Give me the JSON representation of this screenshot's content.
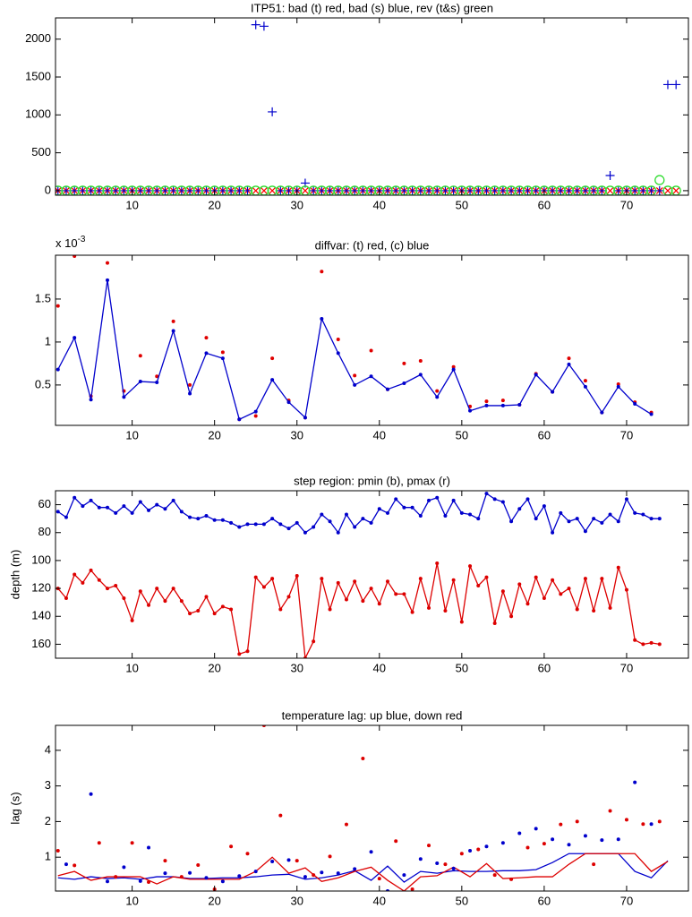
{
  "chart_data": [
    {
      "type": "scatter",
      "title": "ITP51: bad (t) red, bad (s) blue, rev (t&s) green",
      "x": [
        1,
        2,
        3,
        4,
        5,
        6,
        7,
        8,
        9,
        10,
        11,
        12,
        13,
        14,
        15,
        16,
        17,
        18,
        19,
        20,
        21,
        22,
        23,
        24,
        25,
        26,
        27,
        28,
        29,
        30,
        31,
        32,
        33,
        34,
        35,
        36,
        37,
        38,
        39,
        40,
        41,
        42,
        43,
        44,
        45,
        46,
        47,
        48,
        49,
        50,
        51,
        52,
        53,
        54,
        55,
        56,
        57,
        58,
        59,
        60,
        61,
        62,
        63,
        64,
        65,
        66,
        67,
        68,
        69,
        70,
        71,
        72,
        73,
        74,
        75,
        76
      ],
      "series": [
        {
          "color": "#ff0000",
          "marker": "x",
          "line": false,
          "values": [
            0,
            0,
            0,
            0,
            0,
            0,
            0,
            0,
            0,
            0,
            0,
            0,
            0,
            0,
            0,
            0,
            0,
            0,
            0,
            0,
            0,
            0,
            0,
            0,
            0,
            0,
            0,
            0,
            0,
            0,
            0,
            0,
            0,
            0,
            0,
            0,
            0,
            0,
            0,
            0,
            0,
            0,
            0,
            0,
            0,
            0,
            0,
            0,
            0,
            0,
            0,
            0,
            0,
            0,
            0,
            0,
            0,
            0,
            0,
            0,
            0,
            0,
            0,
            0,
            0,
            0,
            0,
            0,
            0,
            0,
            0,
            0,
            0,
            0,
            0,
            0
          ]
        },
        {
          "color": "#0000cc",
          "marker": "+",
          "line": false,
          "values": [
            0,
            0,
            0,
            0,
            0,
            0,
            0,
            0,
            0,
            0,
            0,
            0,
            0,
            0,
            0,
            0,
            0,
            0,
            0,
            0,
            0,
            0,
            0,
            0,
            2190,
            2170,
            1040,
            0,
            0,
            0,
            100,
            0,
            0,
            0,
            0,
            0,
            0,
            0,
            0,
            0,
            0,
            0,
            0,
            0,
            0,
            0,
            0,
            0,
            0,
            0,
            0,
            0,
            0,
            0,
            0,
            0,
            0,
            0,
            0,
            0,
            0,
            0,
            0,
            0,
            0,
            0,
            0,
            200,
            0,
            0,
            0,
            0,
            0,
            0,
            1400,
            1400
          ]
        },
        {
          "color": "#33dd33",
          "marker": "o",
          "line": false,
          "values": [
            0,
            0,
            0,
            0,
            0,
            0,
            0,
            0,
            0,
            0,
            0,
            0,
            0,
            0,
            0,
            0,
            0,
            0,
            0,
            0,
            0,
            0,
            0,
            0,
            0,
            0,
            0,
            0,
            0,
            0,
            0,
            0,
            0,
            0,
            0,
            0,
            0,
            0,
            0,
            0,
            0,
            0,
            0,
            0,
            0,
            0,
            0,
            0,
            0,
            0,
            0,
            0,
            0,
            0,
            0,
            0,
            0,
            0,
            0,
            0,
            0,
            0,
            0,
            0,
            0,
            0,
            0,
            0,
            0,
            0,
            0,
            0,
            0,
            140,
            0,
            0
          ]
        }
      ],
      "xlim": [
        0.7,
        77.5
      ],
      "ylim": [
        -60,
        2280
      ],
      "xticks": [
        10,
        20,
        30,
        40,
        50,
        60,
        70
      ],
      "yticks": [
        0,
        500,
        1000,
        1500,
        2000
      ]
    },
    {
      "type": "line",
      "title": "diffvar: (t) red, (c) blue",
      "multiplier": {
        "base": "x 10",
        "exponent": "-3"
      },
      "x": [
        1,
        3,
        5,
        7,
        9,
        11,
        13,
        15,
        17,
        19,
        21,
        23,
        25,
        27,
        29,
        31,
        33,
        35,
        37,
        39,
        41,
        43,
        45,
        47,
        49,
        51,
        53,
        55,
        57,
        59,
        61,
        63,
        65,
        67,
        69,
        71,
        73
      ],
      "series": [
        {
          "color": "#e00000",
          "marker": ".",
          "line": false,
          "values": [
            1.42,
            2.0,
            0.37,
            1.92,
            0.43,
            0.84,
            0.6,
            1.24,
            0.5,
            1.05,
            0.88,
            0.1,
            0.14,
            0.81,
            0.32,
            0.12,
            1.82,
            1.03,
            0.61,
            0.9,
            0.45,
            0.75,
            0.78,
            0.43,
            0.71,
            0.25,
            0.31,
            0.32,
            0.27,
            0.63,
            0.42,
            0.81,
            0.55,
            0.18,
            0.51,
            0.3,
            0.18
          ]
        },
        {
          "color": "#0000cc",
          "marker": ".",
          "line": true,
          "values": [
            0.68,
            1.05,
            0.33,
            1.72,
            0.36,
            0.54,
            0.53,
            1.13,
            0.4,
            0.87,
            0.81,
            0.1,
            0.19,
            0.56,
            0.3,
            0.12,
            1.27,
            0.87,
            0.5,
            0.6,
            0.45,
            0.52,
            0.62,
            0.36,
            0.68,
            0.2,
            0.26,
            0.26,
            0.27,
            0.62,
            0.42,
            0.74,
            0.48,
            0.18,
            0.48,
            0.28,
            0.16
          ]
        }
      ],
      "xlim": [
        0.7,
        77.5
      ],
      "ylim": [
        0.03,
        2.01
      ],
      "xticks": [
        10,
        20,
        30,
        40,
        50,
        60,
        70
      ],
      "yticks": [
        0.5,
        1,
        1.5
      ]
    },
    {
      "type": "line",
      "title": "step region: pmin (b), pmax (r)",
      "y_label": "depth (m)",
      "y_reversed": true,
      "x": [
        1,
        2,
        3,
        4,
        5,
        6,
        7,
        8,
        9,
        10,
        11,
        12,
        13,
        14,
        15,
        16,
        17,
        18,
        19,
        20,
        21,
        22,
        23,
        24,
        25,
        26,
        27,
        28,
        29,
        30,
        31,
        32,
        33,
        34,
        35,
        36,
        37,
        38,
        39,
        40,
        41,
        42,
        43,
        44,
        45,
        46,
        47,
        48,
        49,
        50,
        51,
        52,
        53,
        54,
        55,
        56,
        57,
        58,
        59,
        60,
        61,
        62,
        63,
        64,
        65,
        66,
        67,
        68,
        69,
        70,
        71,
        72,
        73,
        74
      ],
      "series": [
        {
          "color": "#0000cc",
          "marker": ".",
          "line": true,
          "values": [
            65,
            69,
            55,
            61,
            57,
            62,
            62,
            66,
            61,
            66,
            58,
            64,
            60,
            63,
            57,
            65,
            69,
            70,
            68,
            71,
            71,
            73,
            76,
            74,
            74,
            74,
            70,
            74,
            77,
            73,
            80,
            76,
            67,
            72,
            80,
            67,
            76,
            70,
            73,
            63,
            66,
            56,
            62,
            62,
            68,
            57,
            55,
            68,
            57,
            66,
            67,
            70,
            52,
            56,
            58,
            72,
            63,
            56,
            70,
            61,
            80,
            66,
            72,
            70,
            79,
            70,
            73,
            67,
            72,
            56,
            66,
            67,
            70,
            70
          ]
        },
        {
          "color": "#dd0000",
          "marker": ".",
          "line": true,
          "values": [
            120,
            127,
            110,
            116,
            107,
            114,
            120,
            118,
            127,
            143,
            122,
            132,
            120,
            129,
            120,
            129,
            138,
            136,
            126,
            138,
            133,
            135,
            167,
            165,
            112,
            119,
            113,
            135,
            126,
            111,
            170,
            158,
            113,
            135,
            116,
            128,
            115,
            129,
            120,
            131,
            115,
            124,
            124,
            137,
            113,
            134,
            102,
            136,
            114,
            144,
            104,
            118,
            112,
            145,
            122,
            140,
            117,
            131,
            112,
            127,
            114,
            124,
            120,
            135,
            113,
            136,
            113,
            134,
            105,
            121,
            157,
            160,
            159,
            160
          ]
        }
      ],
      "xlim": [
        0.7,
        77.5
      ],
      "ylim": [
        50,
        170
      ],
      "xticks": [
        10,
        20,
        30,
        40,
        50,
        60,
        70
      ],
      "yticks": [
        60,
        80,
        100,
        120,
        140,
        160
      ]
    },
    {
      "type": "line",
      "title": "temperature lag: up blue, down red",
      "y_label": "lag (s)",
      "x": [
        1,
        3,
        5,
        7,
        9,
        11,
        13,
        15,
        17,
        19,
        21,
        23,
        25,
        27,
        29,
        31,
        33,
        35,
        37,
        39,
        41,
        43,
        45,
        47,
        49,
        51,
        53,
        55,
        57,
        59,
        61,
        63,
        65,
        67,
        69,
        71,
        73,
        75
      ],
      "series": [
        {
          "color": "#0000cc",
          "marker": null,
          "line": true,
          "values": [
            0.42,
            0.38,
            0.45,
            0.4,
            0.42,
            0.38,
            0.45,
            0.45,
            0.4,
            0.4,
            0.42,
            0.42,
            0.45,
            0.5,
            0.52,
            0.38,
            0.42,
            0.5,
            0.62,
            0.35,
            0.75,
            0.3,
            0.6,
            0.55,
            0.62,
            0.6,
            0.6,
            0.62,
            0.62,
            0.65,
            0.85,
            1.1,
            1.1,
            1.1,
            1.1,
            0.6,
            0.42,
            0.9
          ]
        },
        {
          "color": "#dd0000",
          "marker": null,
          "line": true,
          "values": [
            0.48,
            0.6,
            0.35,
            0.45,
            0.45,
            0.45,
            0.25,
            0.45,
            0.38,
            0.38,
            0.38,
            0.38,
            0.6,
            1.0,
            0.55,
            0.7,
            0.32,
            0.42,
            0.6,
            0.72,
            0.35,
            0.05,
            0.45,
            0.48,
            0.72,
            0.45,
            0.82,
            0.4,
            0.42,
            0.45,
            0.45,
            0.8,
            1.1,
            1.1,
            1.1,
            1.1,
            0.6,
            0.88
          ]
        },
        {
          "color": "#0000cc",
          "marker": ".",
          "line": false,
          "x": [
            2,
            5,
            7,
            9,
            11,
            12,
            14,
            17,
            19,
            21,
            23,
            25,
            27,
            29,
            31,
            33,
            35,
            37,
            39,
            41,
            43,
            45,
            47,
            49,
            51,
            53,
            55,
            57,
            59,
            61,
            63,
            65,
            67,
            69,
            71,
            73
          ],
          "values": [
            0.8,
            2.77,
            0.32,
            0.72,
            0.33,
            1.27,
            0.55,
            0.56,
            0.42,
            0.32,
            0.47,
            0.6,
            0.88,
            0.92,
            0.45,
            0.57,
            0.55,
            0.67,
            1.15,
            0.05,
            0.5,
            0.95,
            0.83,
            0.68,
            1.18,
            1.3,
            1.4,
            1.67,
            1.8,
            1.5,
            1.35,
            1.6,
            1.48,
            1.5,
            3.1,
            1.93
          ]
        },
        {
          "color": "#dd0000",
          "marker": ".",
          "line": false,
          "x": [
            1,
            3,
            6,
            8,
            10,
            12,
            14,
            16,
            18,
            20,
            22,
            24,
            26,
            28,
            30,
            32,
            34,
            36,
            38,
            40,
            42,
            44,
            46,
            48,
            50,
            52,
            54,
            56,
            58,
            60,
            62,
            64,
            66,
            68,
            70,
            72,
            74
          ],
          "values": [
            1.18,
            0.77,
            1.4,
            0.45,
            1.4,
            0.3,
            0.9,
            0.45,
            0.78,
            0.1,
            1.3,
            1.1,
            4.7,
            2.17,
            0.9,
            0.5,
            1.02,
            1.92,
            3.77,
            0.4,
            1.45,
            0.1,
            1.33,
            0.8,
            1.1,
            1.22,
            0.5,
            0.38,
            1.27,
            1.38,
            1.92,
            2.0,
            0.8,
            2.3,
            2.05,
            1.93,
            2.0
          ]
        }
      ],
      "xlim": [
        0.7,
        77.5
      ],
      "ylim": [
        0.05,
        4.7
      ],
      "xticks": [
        10,
        20,
        30,
        40,
        50,
        60,
        70
      ],
      "yticks": [
        1,
        2,
        3,
        4
      ]
    }
  ]
}
